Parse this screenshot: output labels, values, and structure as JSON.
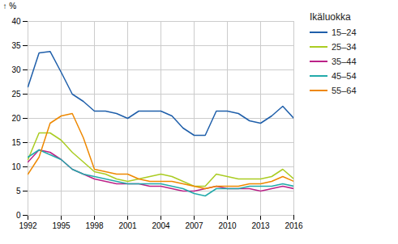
{
  "chart_data": {
    "type": "line",
    "x": [
      1992,
      1993,
      1994,
      1995,
      1996,
      1997,
      1998,
      1999,
      2000,
      2001,
      2002,
      2003,
      2004,
      2005,
      2006,
      2007,
      2008,
      2009,
      2010,
      2011,
      2012,
      2013,
      2014,
      2015,
      2016
    ],
    "series": [
      {
        "name": "15–24",
        "color": "#1f5faa",
        "values": [
          26.5,
          33.5,
          33.8,
          29.5,
          25.0,
          23.5,
          21.5,
          21.5,
          21.0,
          20.0,
          21.5,
          21.5,
          21.5,
          20.5,
          18.0,
          16.5,
          16.5,
          21.5,
          21.5,
          21.0,
          19.5,
          19.0,
          20.5,
          22.5,
          20.0
        ]
      },
      {
        "name": "25–34",
        "color": "#aacc22",
        "values": [
          11.5,
          17.0,
          17.0,
          15.5,
          13.0,
          11.0,
          9.0,
          8.5,
          7.5,
          7.0,
          7.5,
          8.0,
          8.5,
          8.0,
          7.0,
          6.0,
          6.0,
          8.5,
          8.0,
          7.5,
          7.5,
          7.5,
          8.0,
          9.5,
          7.5
        ]
      },
      {
        "name": "35–44",
        "color": "#bb2288",
        "values": [
          11.0,
          13.5,
          13.0,
          11.5,
          9.5,
          8.5,
          7.5,
          7.0,
          6.5,
          6.5,
          6.5,
          6.0,
          6.0,
          5.5,
          5.0,
          5.0,
          5.5,
          6.0,
          5.5,
          5.5,
          5.5,
          5.0,
          5.5,
          6.0,
          5.5
        ]
      },
      {
        "name": "45–54",
        "color": "#22aaaa",
        "values": [
          12.0,
          13.5,
          12.5,
          11.5,
          9.5,
          8.5,
          8.0,
          7.5,
          7.0,
          6.5,
          6.5,
          6.5,
          6.5,
          6.0,
          5.5,
          4.5,
          4.0,
          5.5,
          5.5,
          5.5,
          6.0,
          6.0,
          6.0,
          6.5,
          6.0
        ]
      },
      {
        "name": "55–64",
        "color": "#ee8800",
        "values": [
          8.5,
          12.0,
          19.0,
          20.5,
          21.0,
          16.0,
          9.5,
          9.0,
          8.5,
          8.5,
          7.5,
          7.0,
          7.0,
          7.0,
          6.5,
          6.0,
          5.5,
          6.0,
          6.0,
          6.0,
          6.5,
          6.5,
          7.0,
          8.0,
          7.0
        ]
      }
    ],
    "xlim": [
      1992,
      2016
    ],
    "xticks": [
      1992,
      1995,
      1998,
      2001,
      2004,
      2007,
      2010,
      2013,
      2016
    ],
    "ylim": [
      0,
      40
    ],
    "yticks": [
      0,
      5,
      10,
      15,
      20,
      25,
      30,
      35,
      40
    ],
    "ylabel": "%",
    "legend_title": "Ikäluokka",
    "grid": true,
    "legend": "right"
  }
}
